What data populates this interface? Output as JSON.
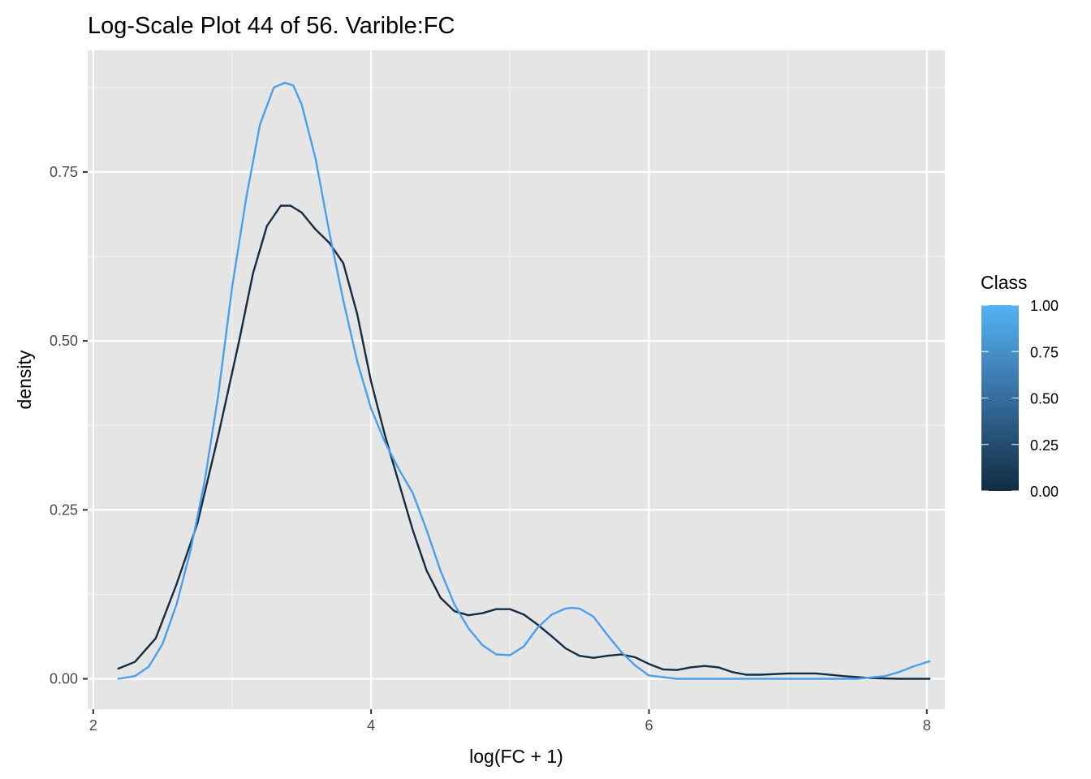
{
  "chart_data": {
    "type": "line",
    "title": "Log-Scale Plot 44 of 56. Varible:FC",
    "xlabel": "log(FC + 1)",
    "ylabel": "density",
    "xlim": [
      1.96,
      8.13
    ],
    "ylim": [
      -0.045,
      0.93
    ],
    "x_ticks": [
      2,
      4,
      6,
      8
    ],
    "x_tick_labels": [
      "2",
      "4",
      "6",
      "8"
    ],
    "y_ticks": [
      0.0,
      0.25,
      0.5,
      0.75
    ],
    "y_tick_labels": [
      "0.00",
      "0.25",
      "0.50",
      "0.75"
    ],
    "grid": true,
    "legend": {
      "title": "Class",
      "type": "colorbar",
      "placement": "right",
      "ticks": [
        0.0,
        0.25,
        0.5,
        0.75,
        1.0
      ],
      "labels": [
        "0.00",
        "0.25",
        "0.50",
        "0.75",
        "1.00"
      ],
      "color_low": "#132B43",
      "color_high": "#56B1F7"
    },
    "series": [
      {
        "class_value": 0,
        "color": "#132B43",
        "x": [
          2.18,
          2.3,
          2.45,
          2.6,
          2.75,
          2.9,
          3.05,
          3.15,
          3.25,
          3.35,
          3.42,
          3.5,
          3.6,
          3.7,
          3.8,
          3.9,
          4.0,
          4.1,
          4.2,
          4.3,
          4.4,
          4.5,
          4.6,
          4.7,
          4.8,
          4.9,
          5.0,
          5.1,
          5.2,
          5.3,
          5.4,
          5.5,
          5.6,
          5.7,
          5.8,
          5.9,
          6.0,
          6.1,
          6.2,
          6.3,
          6.4,
          6.5,
          6.6,
          6.7,
          6.8,
          7.0,
          7.2,
          7.4,
          7.6,
          7.8,
          8.02
        ],
        "y": [
          0.015,
          0.025,
          0.06,
          0.14,
          0.23,
          0.36,
          0.5,
          0.6,
          0.67,
          0.7,
          0.7,
          0.69,
          0.665,
          0.645,
          0.615,
          0.54,
          0.44,
          0.36,
          0.29,
          0.22,
          0.16,
          0.12,
          0.1,
          0.094,
          0.097,
          0.103,
          0.103,
          0.095,
          0.08,
          0.063,
          0.045,
          0.034,
          0.031,
          0.034,
          0.036,
          0.032,
          0.022,
          0.014,
          0.013,
          0.017,
          0.019,
          0.017,
          0.01,
          0.006,
          0.006,
          0.008,
          0.008,
          0.004,
          0.001,
          0.0,
          0.0
        ]
      },
      {
        "class_value": 1,
        "color": "#4B9FEA",
        "x": [
          2.18,
          2.3,
          2.4,
          2.5,
          2.6,
          2.7,
          2.8,
          2.9,
          3.0,
          3.1,
          3.2,
          3.3,
          3.38,
          3.44,
          3.5,
          3.6,
          3.7,
          3.8,
          3.9,
          4.0,
          4.1,
          4.2,
          4.3,
          4.4,
          4.5,
          4.6,
          4.7,
          4.8,
          4.9,
          5.0,
          5.1,
          5.2,
          5.3,
          5.4,
          5.45,
          5.5,
          5.6,
          5.7,
          5.8,
          5.9,
          6.0,
          6.2,
          6.5,
          7.0,
          7.5,
          7.7,
          7.8,
          7.9,
          8.02
        ],
        "y": [
          0.0,
          0.004,
          0.018,
          0.052,
          0.11,
          0.19,
          0.29,
          0.42,
          0.58,
          0.71,
          0.82,
          0.875,
          0.882,
          0.878,
          0.85,
          0.77,
          0.66,
          0.56,
          0.47,
          0.4,
          0.35,
          0.31,
          0.275,
          0.22,
          0.16,
          0.11,
          0.075,
          0.05,
          0.036,
          0.035,
          0.048,
          0.076,
          0.095,
          0.104,
          0.105,
          0.104,
          0.092,
          0.065,
          0.04,
          0.02,
          0.005,
          0.0,
          0.0,
          0.0,
          0.0,
          0.004,
          0.01,
          0.018,
          0.026
        ]
      }
    ]
  }
}
